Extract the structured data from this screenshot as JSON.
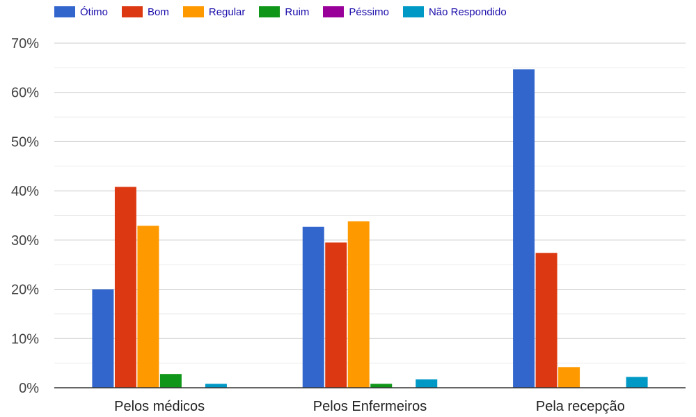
{
  "chart_data": {
    "type": "bar",
    "categories": [
      "Pelos médicos",
      "Pelos Enfermeiros",
      "Pela recepção"
    ],
    "series": [
      {
        "name": "Ótimo",
        "color": "#3366cc",
        "values": [
          20,
          32.7,
          64.7
        ]
      },
      {
        "name": "Bom",
        "color": "#dc3912",
        "values": [
          40.8,
          29.5,
          27.4
        ]
      },
      {
        "name": "Regular",
        "color": "#ff9900",
        "values": [
          32.9,
          33.8,
          4.2
        ]
      },
      {
        "name": "Ruim",
        "color": "#109618",
        "values": [
          2.8,
          0.8,
          0
        ]
      },
      {
        "name": "Péssimo",
        "color": "#990099",
        "values": [
          0,
          0,
          0
        ]
      },
      {
        "name": "Não Respondido",
        "color": "#0099c6",
        "values": [
          0.8,
          1.7,
          2.2
        ]
      }
    ],
    "yticks": [
      "0%",
      "10%",
      "20%",
      "30%",
      "40%",
      "50%",
      "60%",
      "70%"
    ],
    "ylim": [
      0,
      70
    ],
    "grid": true,
    "legend": "top-left"
  }
}
